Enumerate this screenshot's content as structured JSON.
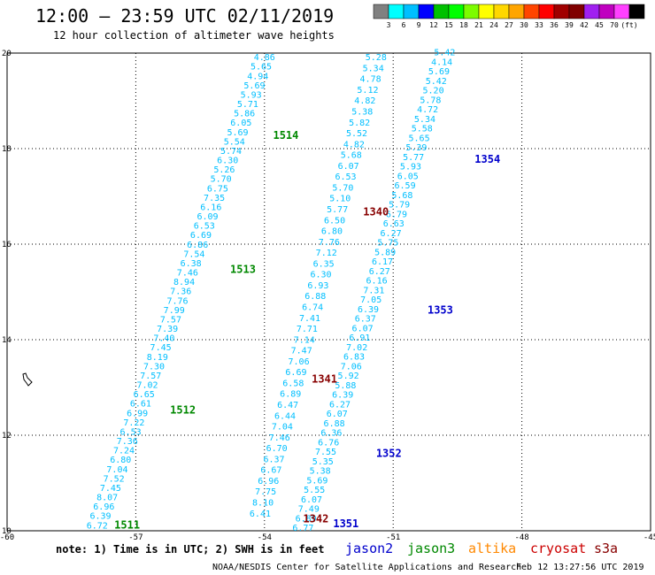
{
  "header": {
    "title": "12:00 – 23:59 UTC 02/11/2019",
    "subtitle": "12 hour collection of altimeter wave heights"
  },
  "colorbar": {
    "colors": [
      "#808080",
      "#00ffff",
      "#00bfff",
      "#0000ff",
      "#00c000",
      "#00ff00",
      "#7cfc00",
      "#ffff00",
      "#ffd700",
      "#ffa500",
      "#ff4500",
      "#ff0000",
      "#a00000",
      "#800000",
      "#a020f0",
      "#c000c0",
      "#ff40ff",
      "#000000"
    ],
    "labels": [
      "3",
      "6",
      "9",
      "12",
      "15",
      "18",
      "21",
      "24",
      "27",
      "30",
      "33",
      "36",
      "39",
      "42",
      "45",
      "70",
      "(ft)"
    ]
  },
  "note": "note:  1) Time is in UTC;  2) SWH is in feet",
  "satellites": [
    {
      "name": "jason2",
      "color": "#0000cc"
    },
    {
      "name": "jason3",
      "color": "#008800"
    },
    {
      "name": "altika",
      "color": "#ff8800"
    },
    {
      "name": "cryosat",
      "color": "#cc0000"
    },
    {
      "name": "s3a",
      "color": "#880000"
    }
  ],
  "footer": {
    "credit": "NOAA/NESDIS Center for Satellite Applications and Research",
    "timestamp": "Feb 12 13:27:56 UTC 2019"
  },
  "chart_data": {
    "type": "scatter",
    "xlim": [
      -60,
      -45
    ],
    "ylim": [
      10,
      20
    ],
    "xticks": [
      "-60",
      "-57",
      "-54",
      "-51",
      "-48",
      "-45"
    ],
    "yticks": [
      "20",
      "18",
      "16",
      "14",
      "12",
      "10"
    ],
    "grid": true,
    "value_color": "#00bfff",
    "tracks": [
      {
        "x0": -57.9,
        "x1": -54.0,
        "y0": 10.05,
        "y1": 19.85,
        "values": [
          "6.72",
          "6.39",
          "6.96",
          "8.07",
          "7.45",
          "7.52",
          "7.04",
          "6.80",
          "7.24",
          "7.36",
          "6.53",
          "7.22",
          "6.99",
          "6.61",
          "6.65",
          "7.02",
          "7.57",
          "7.30",
          "8.19",
          "7.45",
          "7.40",
          "7.39",
          "7.57",
          "7.99",
          "7.76",
          "7.36",
          "8.94",
          "7.46",
          "6.38",
          "7.54",
          "6.86",
          "6.69",
          "6.53",
          "6.09",
          "6.16",
          "7.35",
          "6.75",
          "5.70",
          "5.26",
          "6.30",
          "5.74",
          "5.54",
          "5.69",
          "6.05",
          "5.86",
          "5.71",
          "5.93",
          "5.69",
          "4.94",
          "5.65",
          "4.86"
        ]
      },
      {
        "x0": -54.1,
        "x1": -51.4,
        "y0": 10.3,
        "y1": 19.85,
        "values": [
          "6.41",
          "8.10",
          "7.75",
          "6.96",
          "6.67",
          "6.37",
          "6.70",
          "7.46",
          "7.04",
          "6.44",
          "6.47",
          "6.89",
          "6.58",
          "6.69",
          "7.06",
          "7.47",
          "7.14",
          "7.71",
          "7.41",
          "6.74",
          "6.88",
          "6.93",
          "6.30",
          "6.35",
          "7.12",
          "7.76",
          "6.80",
          "6.50",
          "5.77",
          "5.10",
          "5.70",
          "6.53",
          "6.07",
          "5.68",
          "4.82",
          "5.52",
          "5.82",
          "5.38",
          "4.82",
          "5.12",
          "4.78",
          "5.34",
          "5.28"
        ]
      },
      {
        "x0": -53.1,
        "x1": -49.8,
        "y0": 10.0,
        "y1": 19.95,
        "values": [
          "6.77",
          "6.89",
          "7.49",
          "6.07",
          "5.55",
          "5.69",
          "5.38",
          "5.35",
          "7.55",
          "6.76",
          "6.36",
          "6.88",
          "6.07",
          "6.27",
          "6.39",
          "5.88",
          "5.92",
          "7.06",
          "6.83",
          "7.02",
          "6.91",
          "6.07",
          "6.37",
          "6.39",
          "7.05",
          "7.31",
          "6.16",
          "6.27",
          "6.17",
          "5.89",
          "5.75",
          "6.27",
          "6.63",
          "6.79",
          "5.79",
          "5.68",
          "6.59",
          "6.05",
          "5.93",
          "5.77",
          "5.39",
          "5.65",
          "5.58",
          "5.34",
          "4.72",
          "5.78",
          "5.20",
          "5.42",
          "5.69",
          "4.14",
          "5.42"
        ]
      }
    ],
    "pass_labels": [
      {
        "text": "1511",
        "x": -57.5,
        "y": 10.05,
        "color": "#008800"
      },
      {
        "text": "1512",
        "x": -56.2,
        "y": 12.45,
        "color": "#008800"
      },
      {
        "text": "1513",
        "x": -54.8,
        "y": 15.4,
        "color": "#008800"
      },
      {
        "text": "1514",
        "x": -53.8,
        "y": 18.2,
        "color": "#008800"
      },
      {
        "text": "1340",
        "x": -51.7,
        "y": 16.6,
        "color": "#880000"
      },
      {
        "text": "1341",
        "x": -52.9,
        "y": 13.1,
        "color": "#880000"
      },
      {
        "text": "1342",
        "x": -53.1,
        "y": 10.18,
        "color": "#880000"
      },
      {
        "text": "1351",
        "x": -52.4,
        "y": 10.07,
        "color": "#0000cc"
      },
      {
        "text": "1352",
        "x": -51.4,
        "y": 11.55,
        "color": "#0000cc"
      },
      {
        "text": "1353",
        "x": -50.2,
        "y": 14.55,
        "color": "#0000cc"
      },
      {
        "text": "1354",
        "x": -49.1,
        "y": 17.7,
        "color": "#0000cc"
      }
    ]
  }
}
